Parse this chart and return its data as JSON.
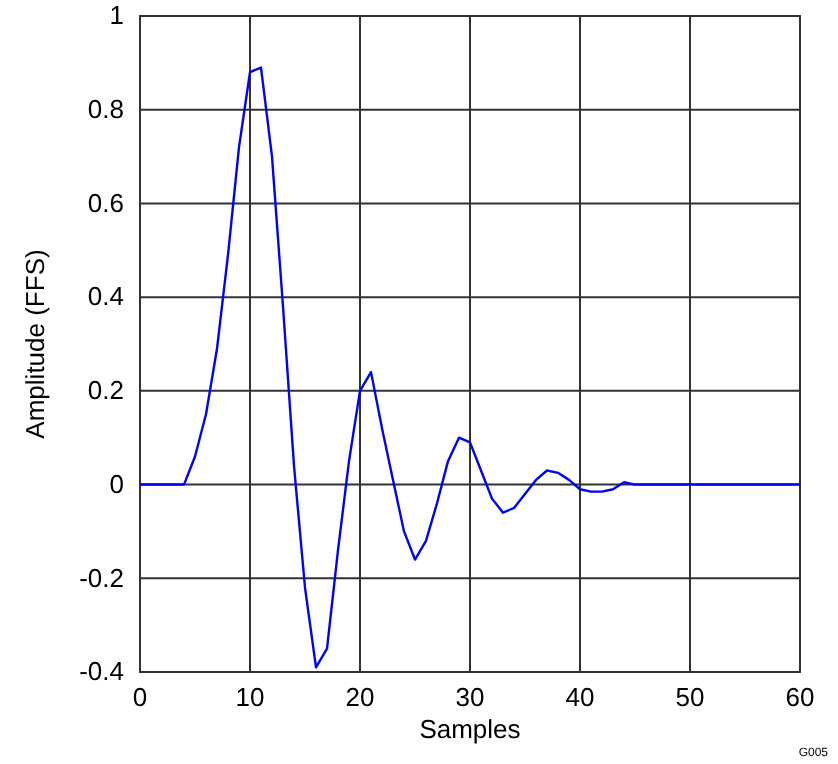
{
  "chart_data": {
    "type": "line",
    "xlabel": "Samples",
    "ylabel": "Amplitude (FFS)",
    "annotations": [
      "G005"
    ],
    "x": [
      0,
      4,
      5,
      6,
      7,
      8,
      9,
      10,
      11,
      12,
      13,
      14,
      15,
      16,
      17,
      18,
      19,
      20,
      21,
      22,
      23,
      24,
      25,
      26,
      27,
      28,
      29,
      30,
      31,
      32,
      33,
      34,
      35,
      36,
      37,
      38,
      39,
      40,
      41,
      42,
      43,
      44,
      45,
      60
    ],
    "series": [
      {
        "color": "#0000ff",
        "values": [
          0,
          0,
          0.06,
          0.15,
          0.29,
          0.49,
          0.72,
          0.88,
          0.89,
          0.7,
          0.38,
          0.04,
          -0.22,
          -0.39,
          -0.35,
          -0.14,
          0.05,
          0.2,
          0.24,
          0.12,
          0.01,
          -0.1,
          -0.16,
          -0.12,
          -0.04,
          0.05,
          0.1,
          0.09,
          0.03,
          -0.03,
          -0.06,
          -0.05,
          -0.02,
          0.01,
          0.03,
          0.025,
          0.01,
          -0.01,
          -0.015,
          -0.015,
          -0.01,
          0.005,
          0,
          0
        ]
      }
    ],
    "xlim": [
      0,
      60
    ],
    "xticks": [
      0,
      10,
      20,
      30,
      40,
      50,
      60
    ],
    "ylim": [
      -0.4,
      1
    ],
    "yticks": [
      -0.4,
      -0.2,
      0,
      0.2,
      0.4,
      0.6,
      0.8,
      1
    ],
    "grid": true,
    "marker": "none",
    "line_style": "solid"
  }
}
